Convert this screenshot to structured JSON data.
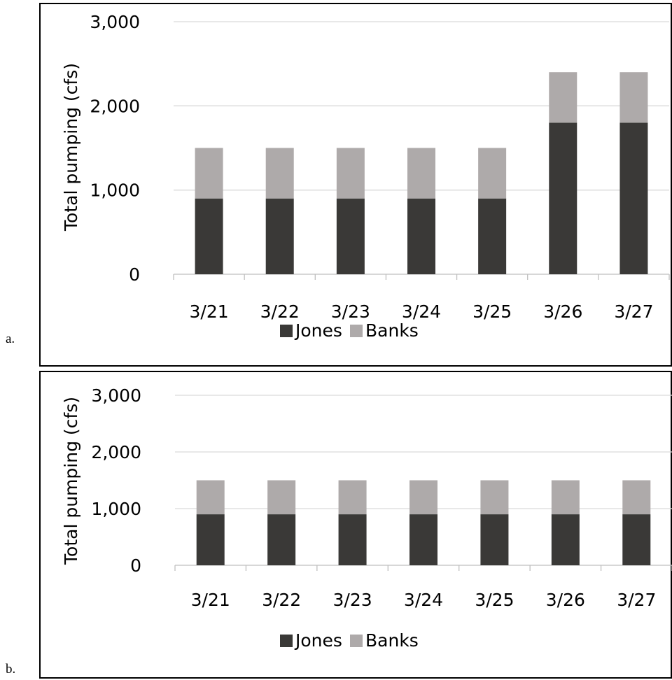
{
  "panels": [
    {
      "letter": "a."
    },
    {
      "letter": "b."
    }
  ],
  "colors": {
    "Jones": "#3a3937",
    "Banks": "#aeaaaa",
    "grid": "#d9d9d9",
    "axis": "#bfbfbf"
  },
  "chart_data": [
    {
      "type": "bar",
      "stacked": true,
      "categories": [
        "3/21",
        "3/22",
        "3/23",
        "3/24",
        "3/25",
        "3/26",
        "3/27"
      ],
      "series": [
        {
          "name": "Jones",
          "values": [
            900,
            900,
            900,
            900,
            900,
            1800,
            1800
          ]
        },
        {
          "name": "Banks",
          "values": [
            600,
            600,
            600,
            600,
            600,
            600,
            600
          ]
        }
      ],
      "ylabel": "Total pumping (cfs)",
      "ylim": [
        0,
        3000
      ],
      "yticks": [
        "0",
        "1,000",
        "2,000",
        "3,000"
      ],
      "grid": true,
      "legend": "bottom"
    },
    {
      "type": "bar",
      "stacked": true,
      "categories": [
        "3/21",
        "3/22",
        "3/23",
        "3/24",
        "3/25",
        "3/26",
        "3/27"
      ],
      "series": [
        {
          "name": "Jones",
          "values": [
            900,
            900,
            900,
            900,
            900,
            900,
            900
          ]
        },
        {
          "name": "Banks",
          "values": [
            600,
            600,
            600,
            600,
            600,
            600,
            600
          ]
        }
      ],
      "ylabel": "Total pumping (cfs)",
      "ylim": [
        0,
        3000
      ],
      "yticks": [
        "0",
        "1,000",
        "2,000",
        "3,000"
      ],
      "grid": true,
      "legend": "bottom"
    }
  ]
}
